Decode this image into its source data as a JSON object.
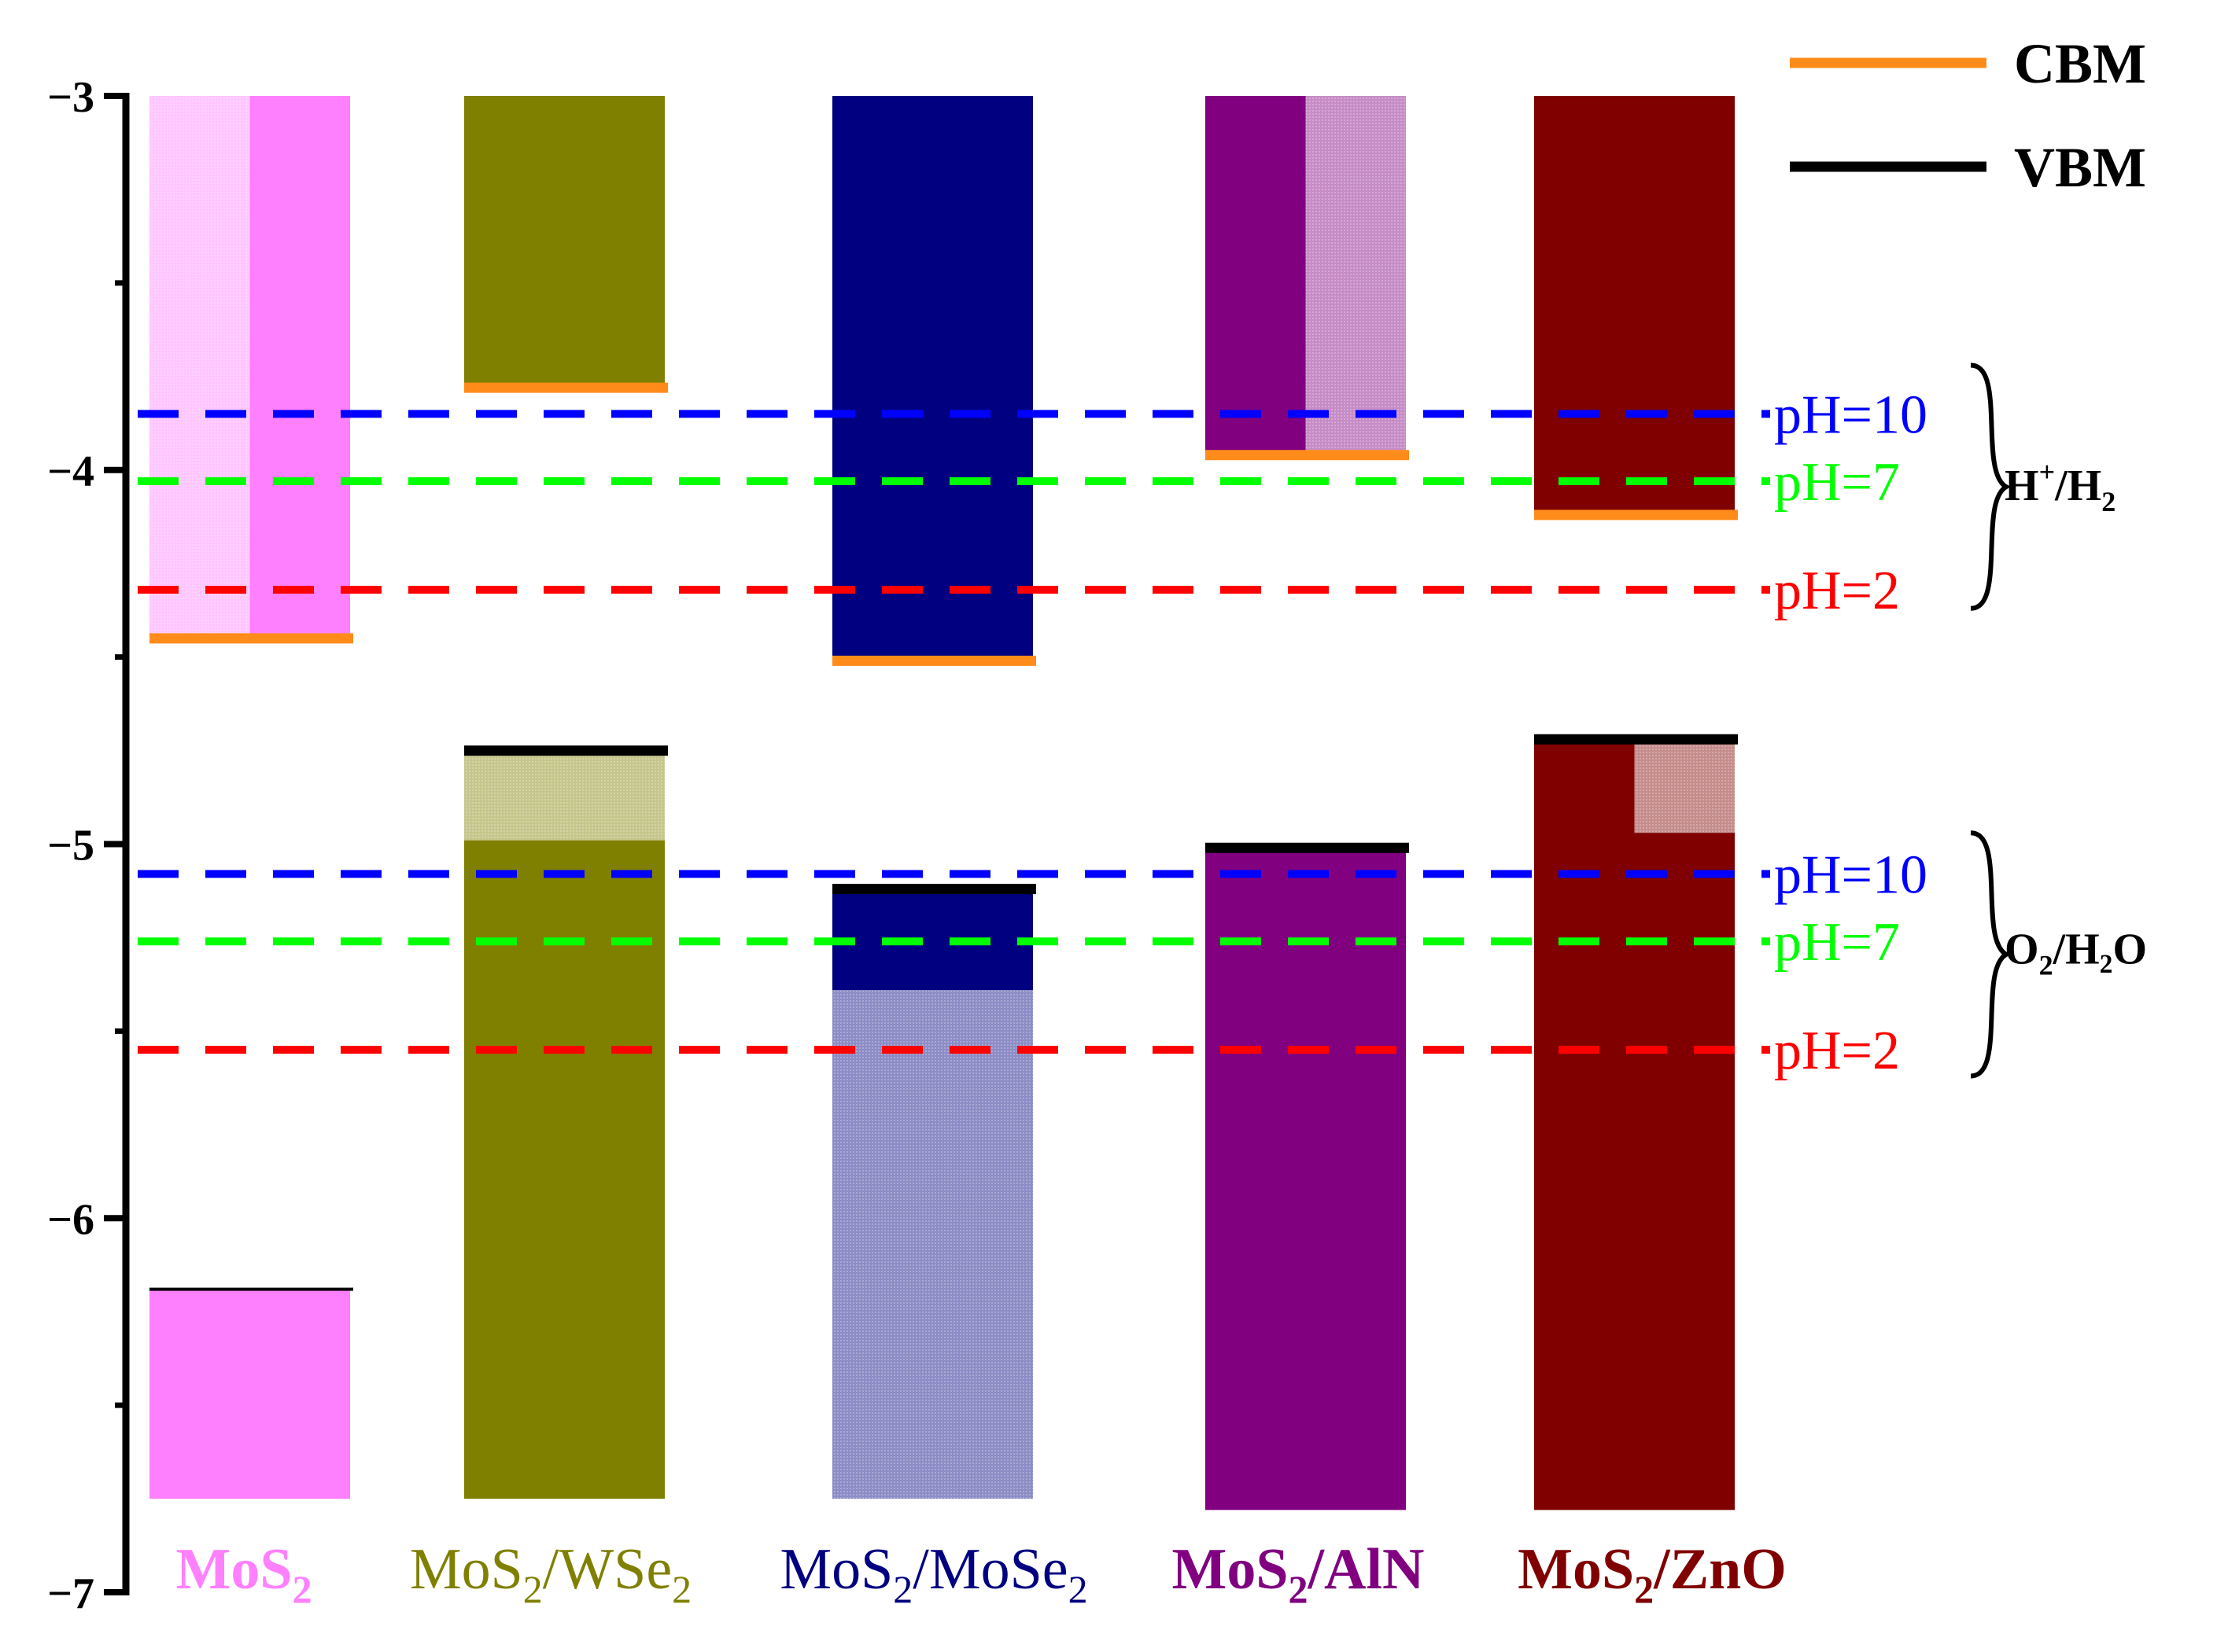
{
  "chart_data": {
    "type": "band-alignment",
    "ylabel": "",
    "ylim": [
      -7,
      -3
    ],
    "yticks": [
      -3,
      -4,
      -5,
      -6,
      -7
    ],
    "ytick_labels": [
      "−3",
      "−4",
      "−5",
      "−6",
      "−7"
    ],
    "legend": [
      {
        "label": "CBM",
        "color": "#ff8c1a"
      },
      {
        "label": "VBM",
        "color": "#000000"
      }
    ],
    "materials": [
      {
        "name": "MoS",
        "sub": "2",
        "suffix": "",
        "sub2": "",
        "bold": true,
        "color": "#ff80ff",
        "conduction_top": -3.0,
        "cbm": -4.45,
        "vbm": -6.19,
        "valence_bottom": -6.75,
        "conduction_light_to": -4.45,
        "valence_light": null
      },
      {
        "name": "MoS",
        "sub": "2",
        "suffix": "/WSe",
        "sub2": "2",
        "bold": false,
        "color": "#808000",
        "conduction_top": -3.0,
        "cbm": -3.78,
        "vbm": -4.75,
        "valence_bottom": -6.75,
        "conduction_light_to": null,
        "valence_light": [
          -4.75,
          -4.99
        ]
      },
      {
        "name": "MoS",
        "sub": "2",
        "suffix": "/MoSe",
        "sub2": "2",
        "bold": false,
        "color": "#000080",
        "conduction_top": -3.0,
        "cbm": -4.51,
        "vbm": -5.12,
        "valence_bottom": -6.75,
        "conduction_light_to": null,
        "valence_light": [
          -5.39,
          -6.75
        ]
      },
      {
        "name": "MoS",
        "sub": "2",
        "suffix": "/AlN",
        "sub2": "",
        "bold": true,
        "color": "#800080",
        "conduction_top": -3.0,
        "cbm": -3.96,
        "vbm": -5.01,
        "valence_bottom": -6.78,
        "conduction_light_to": -3.96,
        "valence_light": null
      },
      {
        "name": "MoS",
        "sub": "2",
        "suffix": "/ZnO",
        "sub2": "",
        "bold": true,
        "color": "#800000",
        "conduction_top": -3.0,
        "cbm": -4.12,
        "vbm": -4.72,
        "valence_bottom": -6.78,
        "conduction_light_to": null,
        "valence_light": [
          -4.72,
          -4.97
        ],
        "valence_light_right_only": true
      }
    ],
    "redox_levels": [
      {
        "couple": "H+/H2",
        "ph": "pH=10",
        "energy": -3.85,
        "color": "#0000ff"
      },
      {
        "couple": "H+/H2",
        "ph": "pH=7",
        "energy": -4.03,
        "color": "#00ff00"
      },
      {
        "couple": "H+/H2",
        "ph": "pH=2",
        "energy": -4.32,
        "color": "#ff0000"
      },
      {
        "couple": "O2/H2O",
        "ph": "pH=10",
        "energy": -5.08,
        "color": "#0000ff"
      },
      {
        "couple": "O2/H2O",
        "ph": "pH=7",
        "energy": -5.26,
        "color": "#00ff00"
      },
      {
        "couple": "O2/H2O",
        "ph": "pH=2",
        "energy": -5.55,
        "color": "#ff0000"
      }
    ],
    "couples": [
      {
        "main": "H",
        "sup": "+",
        "mid": "/H",
        "sub": "2",
        "tail": ""
      },
      {
        "main": "O",
        "sup": "",
        "mid": "",
        "sub": "2",
        "tail": "/H₂O"
      }
    ]
  }
}
